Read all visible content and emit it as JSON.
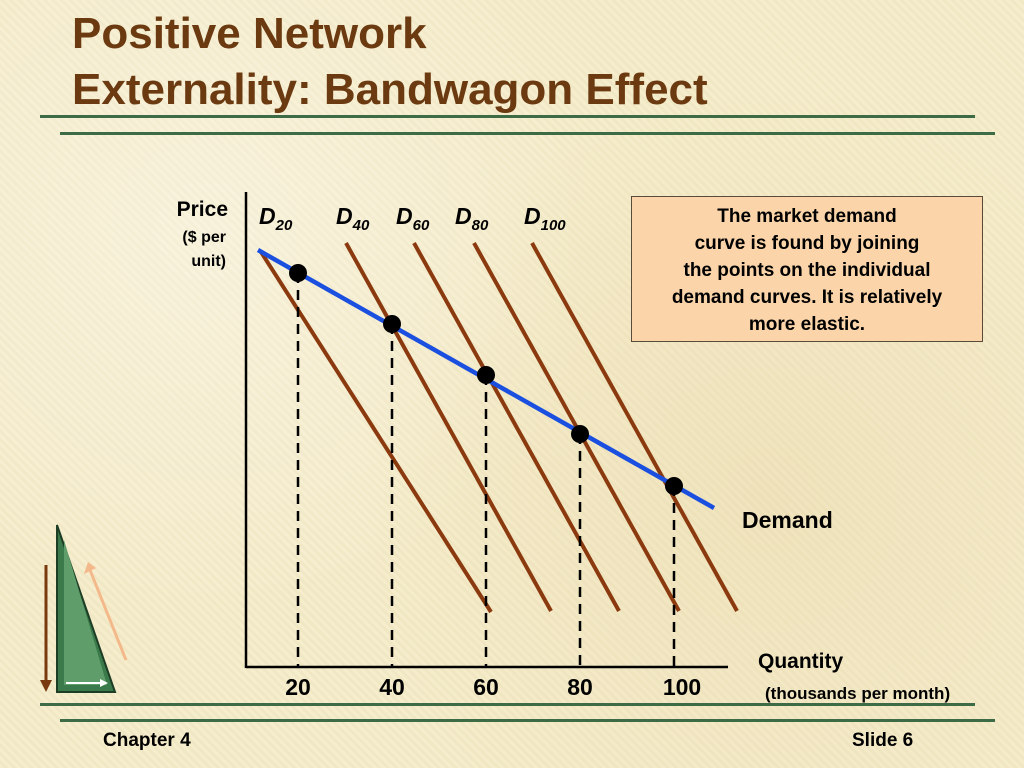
{
  "title": {
    "line1": "Positive Network",
    "line2": "Externality: Bandwagon Effect"
  },
  "chart_data": {
    "type": "line",
    "y_axis": {
      "label_line1": "Price",
      "label_line2": "($ per",
      "label_line3": "unit)"
    },
    "x_axis": {
      "label": "Quantity",
      "unit": "(thousands per month)",
      "ticks": [
        "20",
        "40",
        "60",
        "80",
        "100"
      ]
    },
    "individual_demand_curves": [
      {
        "base": "D",
        "sub": "20"
      },
      {
        "base": "D",
        "sub": "40"
      },
      {
        "base": "D",
        "sub": "60"
      },
      {
        "base": "D",
        "sub": "80"
      },
      {
        "base": "D",
        "sub": "100"
      }
    ],
    "market_demand": {
      "label": "Demand",
      "quantities": [
        20,
        40,
        60,
        80,
        100
      ]
    },
    "colors": {
      "individual": "#8b3a0f",
      "market": "#1a4fe0",
      "points": "#000000"
    }
  },
  "callout": {
    "line1": "The market demand",
    "line2": "curve is found by joining",
    "line3": "the points on the individual",
    "line4": "demand curves.  It is relatively",
    "line5": "more elastic."
  },
  "footer": {
    "chapter": "Chapter 4",
    "slide": "Slide 6"
  },
  "decoration": {
    "icon": "green-triangle-arrows-icon"
  }
}
